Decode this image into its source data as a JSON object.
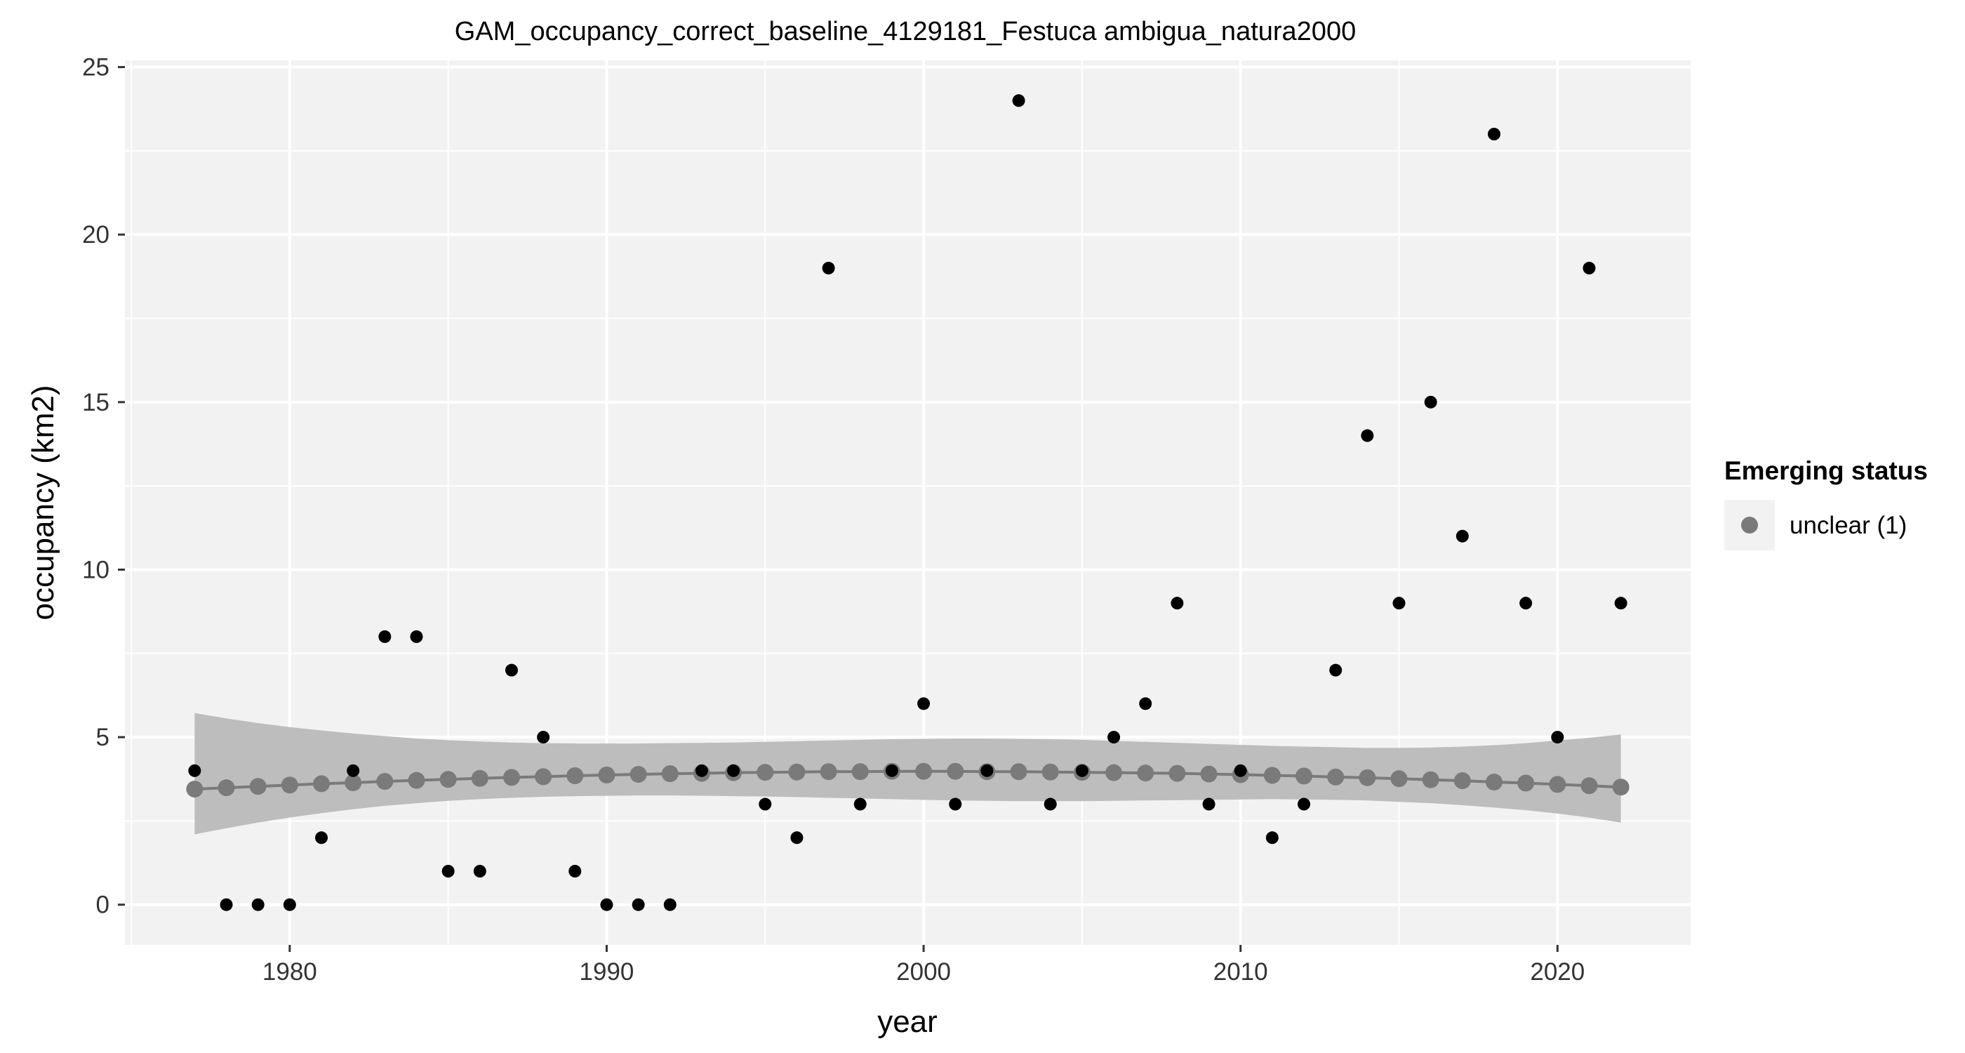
{
  "chart_data": {
    "type": "scatter",
    "title": "GAM_occupancy_correct_baseline_4129181_Festuca ambigua_natura2000",
    "xlabel": "year",
    "ylabel": "occupancy (km2)",
    "xlim": [
      1974.8,
      2024.2
    ],
    "ylim": [
      -1.2,
      25.2
    ],
    "x_ticks": [
      1980,
      1990,
      2000,
      2010,
      2020
    ],
    "y_ticks": [
      0,
      5,
      10,
      15,
      20,
      25
    ],
    "grid": true,
    "legend": {
      "title": "Emerging status",
      "position": "right",
      "items": [
        {
          "label": "unclear (1)",
          "color": "#7a7a7a"
        }
      ]
    },
    "colors": {
      "panel": "#f2f2f2",
      "grid": "#ffffff",
      "observed": "#000000",
      "fit": "#7a7a7a",
      "ribbon": "#bdbdbd"
    },
    "observed": {
      "x": [
        1977,
        1978,
        1979,
        1980,
        1981,
        1982,
        1983,
        1984,
        1985,
        1986,
        1987,
        1988,
        1989,
        1990,
        1991,
        1992,
        1993,
        1994,
        1995,
        1996,
        1997,
        1998,
        1999,
        2000,
        2001,
        2002,
        2003,
        2004,
        2005,
        2006,
        2007,
        2008,
        2009,
        2010,
        2011,
        2012,
        2013,
        2014,
        2015,
        2016,
        2017,
        2018,
        2019,
        2020,
        2021,
        2022
      ],
      "y": [
        4,
        0,
        0,
        0,
        2,
        4,
        8,
        8,
        1,
        1,
        7,
        5,
        1,
        0,
        0,
        0,
        4,
        4,
        3,
        2,
        19,
        3,
        4,
        6,
        3,
        4,
        24,
        3,
        4,
        5,
        6,
        9,
        3,
        4,
        2,
        3,
        7,
        14,
        9,
        15,
        11,
        23,
        9,
        5,
        19,
        9
      ]
    },
    "series": [
      {
        "name": "unclear (1)",
        "x": [
          1977,
          1978,
          1979,
          1980,
          1981,
          1982,
          1983,
          1984,
          1985,
          1986,
          1987,
          1988,
          1989,
          1990,
          1991,
          1992,
          1993,
          1994,
          1995,
          1996,
          1997,
          1998,
          1999,
          2000,
          2001,
          2002,
          2003,
          2004,
          2005,
          2006,
          2007,
          2008,
          2009,
          2010,
          2011,
          2012,
          2013,
          2014,
          2015,
          2016,
          2017,
          2018,
          2019,
          2020,
          2021,
          2022
        ],
        "fit": [
          3.45,
          3.49,
          3.53,
          3.57,
          3.61,
          3.64,
          3.68,
          3.71,
          3.74,
          3.77,
          3.8,
          3.82,
          3.85,
          3.87,
          3.89,
          3.91,
          3.92,
          3.94,
          3.95,
          3.96,
          3.97,
          3.97,
          3.98,
          3.98,
          3.98,
          3.97,
          3.97,
          3.96,
          3.95,
          3.94,
          3.93,
          3.92,
          3.9,
          3.88,
          3.86,
          3.84,
          3.81,
          3.79,
          3.76,
          3.73,
          3.7,
          3.66,
          3.63,
          3.59,
          3.55,
          3.51
        ],
        "lower": [
          2.1,
          2.28,
          2.45,
          2.6,
          2.73,
          2.85,
          2.95,
          3.03,
          3.1,
          3.15,
          3.19,
          3.22,
          3.24,
          3.25,
          3.26,
          3.26,
          3.25,
          3.24,
          3.23,
          3.21,
          3.19,
          3.17,
          3.15,
          3.13,
          3.11,
          3.1,
          3.09,
          3.09,
          3.09,
          3.1,
          3.11,
          3.12,
          3.13,
          3.14,
          3.15,
          3.14,
          3.13,
          3.11,
          3.07,
          3.03,
          2.97,
          2.9,
          2.82,
          2.72,
          2.6,
          2.45
        ],
        "upper": [
          5.72,
          5.56,
          5.42,
          5.3,
          5.2,
          5.11,
          5.03,
          4.96,
          4.91,
          4.87,
          4.84,
          4.82,
          4.81,
          4.81,
          4.81,
          4.82,
          4.83,
          4.84,
          4.86,
          4.88,
          4.9,
          4.92,
          4.94,
          4.95,
          4.96,
          4.96,
          4.95,
          4.94,
          4.92,
          4.89,
          4.86,
          4.83,
          4.8,
          4.77,
          4.74,
          4.72,
          4.7,
          4.68,
          4.68,
          4.69,
          4.72,
          4.76,
          4.82,
          4.9,
          4.98,
          5.08
        ]
      }
    ]
  }
}
